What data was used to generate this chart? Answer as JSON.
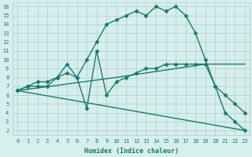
{
  "xlabel": "Humidex (Indice chaleur)",
  "bg_color": "#d6eeec",
  "grid_color": "#aacfcc",
  "line_color": "#1a7a6e",
  "xlim": [
    -0.5,
    23.5
  ],
  "ylim": [
    1.5,
    16.5
  ],
  "xticks": [
    0,
    1,
    2,
    3,
    4,
    5,
    6,
    7,
    8,
    9,
    10,
    11,
    12,
    13,
    14,
    15,
    16,
    17,
    18,
    19,
    20,
    21,
    22,
    23
  ],
  "yticks": [
    2,
    3,
    4,
    5,
    6,
    7,
    8,
    9,
    10,
    11,
    12,
    13,
    14,
    15,
    16
  ],
  "series": [
    {
      "x": [
        0,
        1,
        2,
        3,
        4,
        5,
        6,
        7,
        8,
        9,
        10,
        11,
        12,
        13,
        14,
        15,
        16,
        17,
        18,
        19,
        20,
        21,
        22,
        23
      ],
      "y": [
        6.5,
        7,
        7,
        7,
        8,
        8.5,
        8,
        10,
        12,
        14,
        14.5,
        15,
        15.5,
        15,
        16,
        15.5,
        16,
        15,
        13,
        10,
        7,
        4,
        3,
        2
      ],
      "marker": "D",
      "markersize": 2.5,
      "linewidth": 1.0
    },
    {
      "x": [
        0,
        1,
        2,
        3,
        4,
        5,
        6,
        7,
        8,
        9,
        10,
        11,
        12,
        13,
        14,
        15,
        16,
        17,
        18,
        19,
        20,
        21,
        22,
        23
      ],
      "y": [
        6.5,
        7,
        7.5,
        7.5,
        8,
        9.5,
        8,
        4.5,
        11,
        6,
        7.5,
        8,
        8.5,
        9,
        9,
        9.5,
        9.5,
        9.5,
        9.5,
        9.5,
        7,
        6,
        5,
        4
      ],
      "marker": "D",
      "markersize": 2.5,
      "linewidth": 1.0
    },
    {
      "x": [
        0,
        23
      ],
      "y": [
        6.5,
        2
      ],
      "marker": null,
      "markersize": 0,
      "linewidth": 1.0
    },
    {
      "x": [
        0,
        10,
        19,
        23
      ],
      "y": [
        6.5,
        8,
        9.5,
        9.5
      ],
      "marker": null,
      "markersize": 0,
      "linewidth": 1.0
    }
  ]
}
